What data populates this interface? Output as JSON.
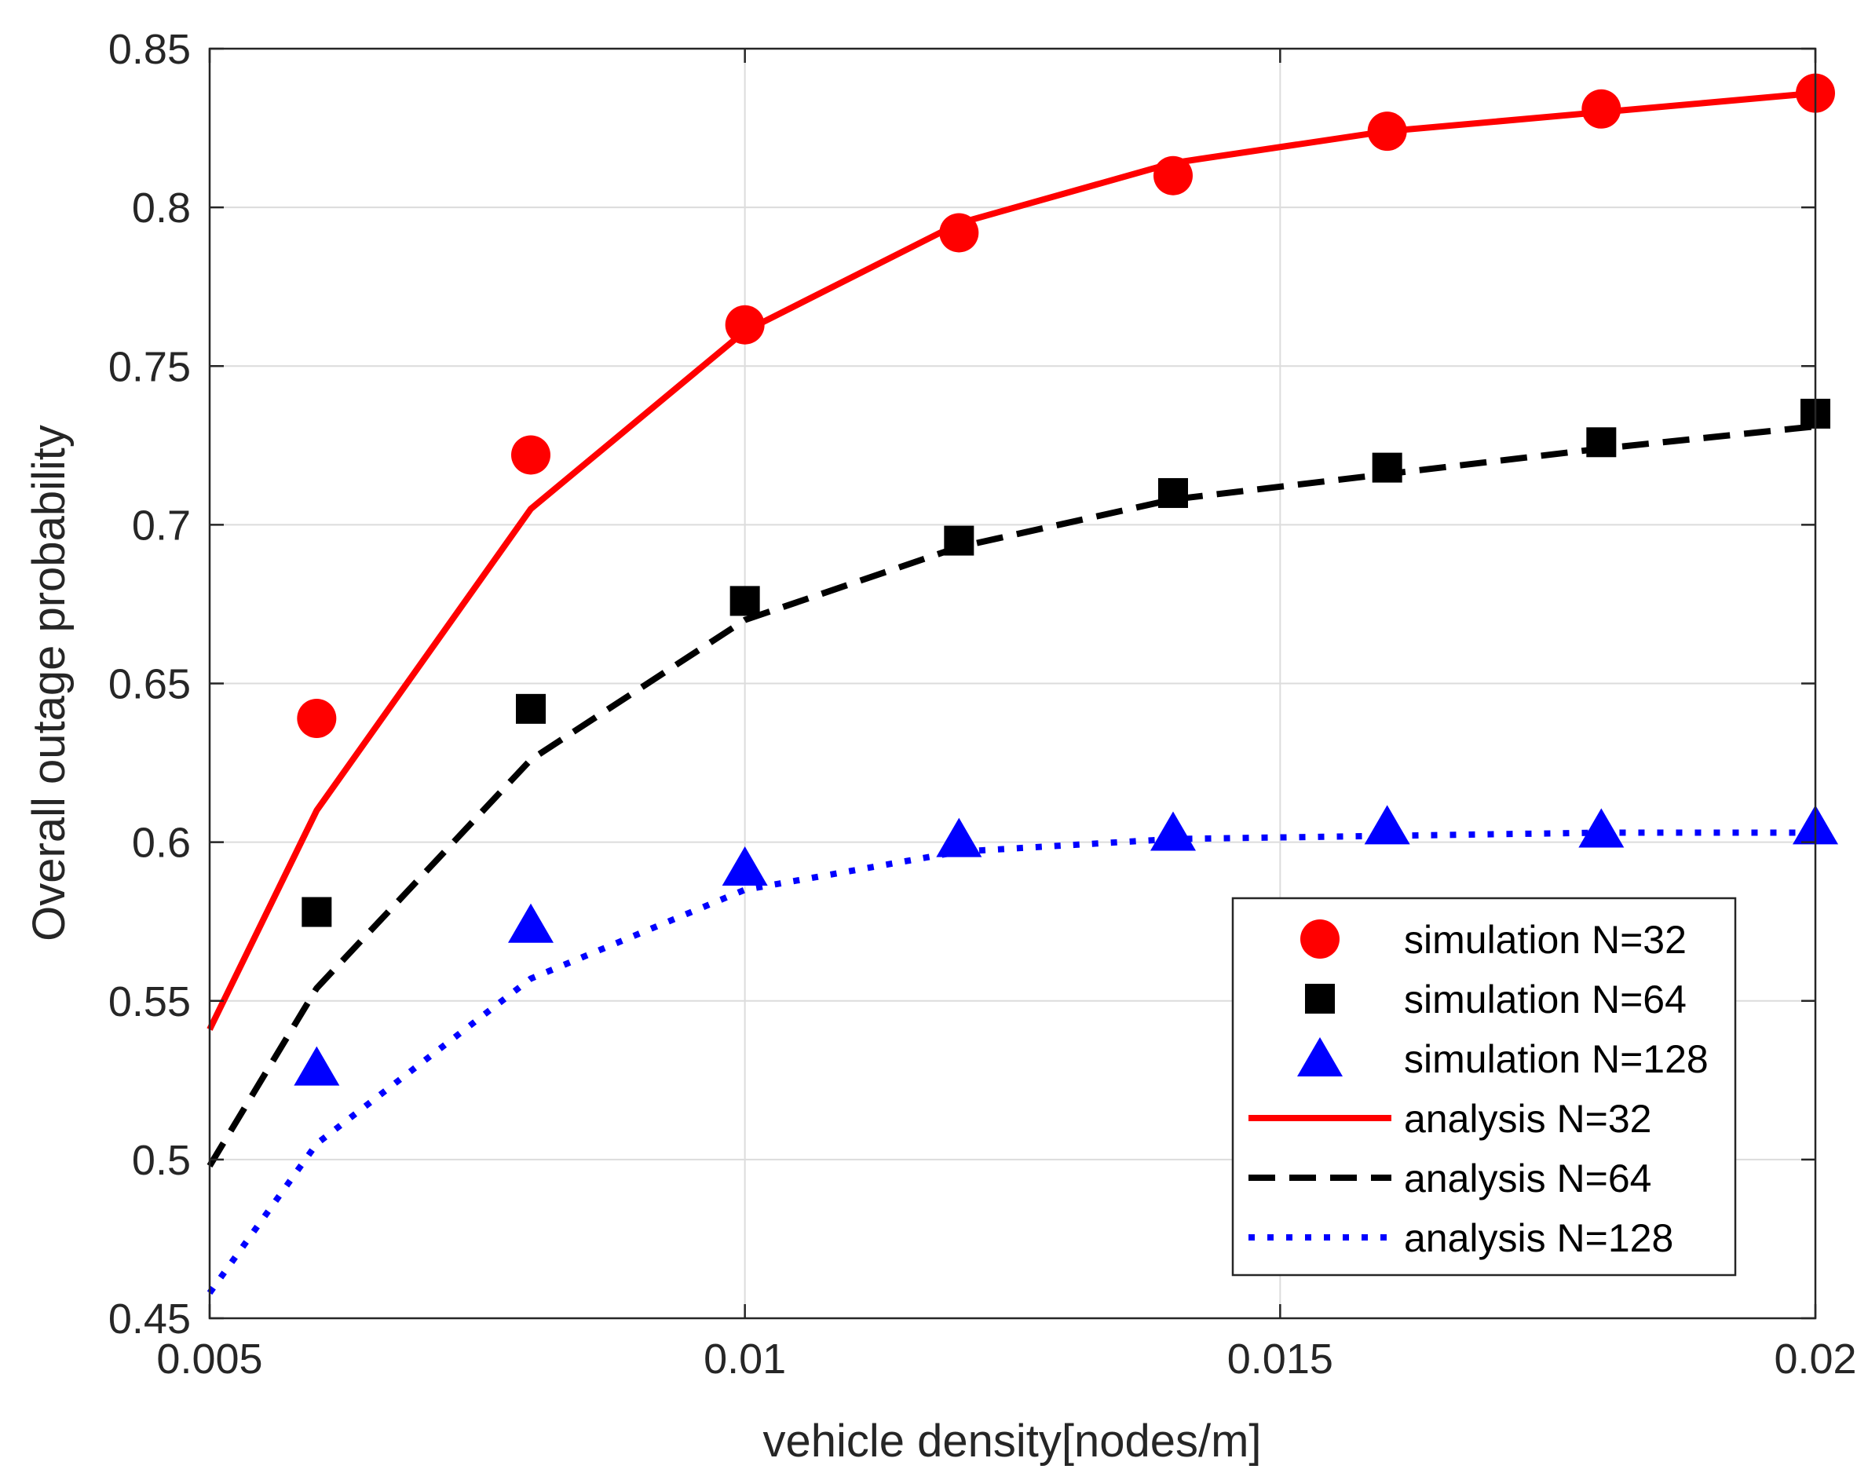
{
  "chart_data": {
    "type": "line",
    "title": "",
    "xlabel": "vehicle density[nodes/m]",
    "ylabel": "Overall outage probability",
    "xlim": [
      0.005,
      0.02
    ],
    "ylim": [
      0.45,
      0.85
    ],
    "xticks": [
      0.005,
      0.01,
      0.015,
      0.02
    ],
    "xtick_labels": [
      "0.005",
      "0.01",
      "0.015",
      "0.02"
    ],
    "yticks": [
      0.45,
      0.5,
      0.55,
      0.6,
      0.65,
      0.7,
      0.75,
      0.8,
      0.85
    ],
    "ytick_labels": [
      "0.45",
      "0.5",
      "0.55",
      "0.6",
      "0.65",
      "0.7",
      "0.75",
      "0.8",
      "0.85"
    ],
    "grid": true,
    "legend_position": "bottom-right",
    "series": [
      {
        "name": "simulation N=32",
        "kind": "markers",
        "marker": "circle",
        "color": "#ff0000",
        "x": [
          0.006,
          0.008,
          0.01,
          0.012,
          0.014,
          0.016,
          0.018,
          0.02
        ],
        "y": [
          0.639,
          0.722,
          0.763,
          0.792,
          0.81,
          0.824,
          0.831,
          0.836
        ]
      },
      {
        "name": "simulation N=64",
        "kind": "markers",
        "marker": "square",
        "color": "#000000",
        "x": [
          0.006,
          0.008,
          0.01,
          0.012,
          0.014,
          0.016,
          0.018,
          0.02
        ],
        "y": [
          0.578,
          0.642,
          0.676,
          0.695,
          0.71,
          0.718,
          0.726,
          0.735
        ]
      },
      {
        "name": "simulation N=128",
        "kind": "markers",
        "marker": "triangle",
        "color": "#0000ff",
        "x": [
          0.006,
          0.008,
          0.01,
          0.012,
          0.014,
          0.016,
          0.018,
          0.02
        ],
        "y": [
          0.529,
          0.574,
          0.592,
          0.601,
          0.603,
          0.605,
          0.604,
          0.605
        ]
      },
      {
        "name": "analysis N=32",
        "kind": "line",
        "dash": "solid",
        "color": "#ff0000",
        "x": [
          0.005,
          0.006,
          0.008,
          0.01,
          0.012,
          0.014,
          0.016,
          0.018,
          0.02
        ],
        "y": [
          0.541,
          0.61,
          0.705,
          0.761,
          0.795,
          0.814,
          0.824,
          0.83,
          0.836
        ]
      },
      {
        "name": "analysis N=64",
        "kind": "line",
        "dash": "dashed",
        "color": "#000000",
        "x": [
          0.005,
          0.006,
          0.008,
          0.01,
          0.012,
          0.014,
          0.016,
          0.018,
          0.02
        ],
        "y": [
          0.498,
          0.554,
          0.626,
          0.67,
          0.693,
          0.708,
          0.716,
          0.724,
          0.731
        ]
      },
      {
        "name": "analysis N=128",
        "kind": "line",
        "dash": "dotted",
        "color": "#0000ff",
        "x": [
          0.005,
          0.006,
          0.008,
          0.01,
          0.012,
          0.014,
          0.016,
          0.018,
          0.02
        ],
        "y": [
          0.458,
          0.505,
          0.557,
          0.585,
          0.597,
          0.601,
          0.602,
          0.603,
          0.603
        ]
      }
    ]
  }
}
